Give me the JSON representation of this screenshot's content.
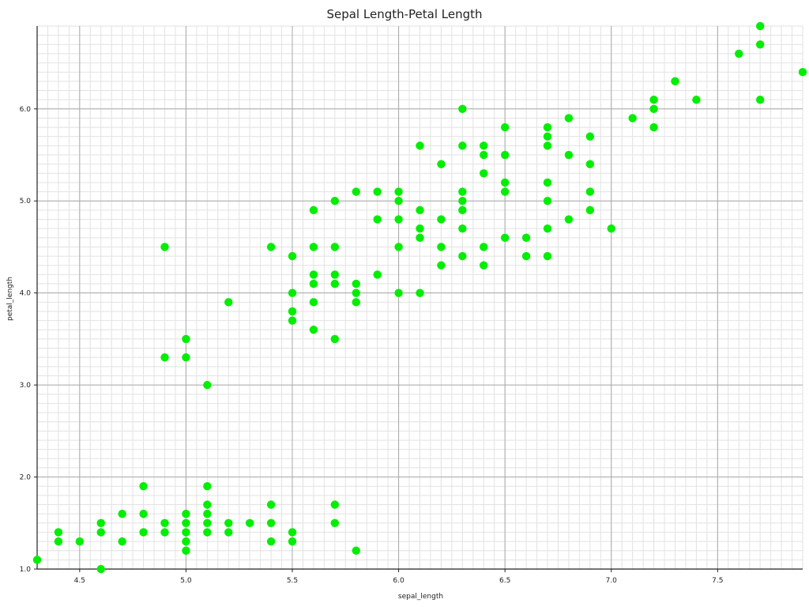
{
  "chart_data": {
    "type": "scatter",
    "title": "Sepal Length-Petal Length",
    "xlabel": "sepal_length",
    "ylabel": "petal_length",
    "xlim": [
      4.3,
      7.9
    ],
    "ylim": [
      1.0,
      6.9
    ],
    "x_ticks": [
      "4.5",
      "5.0",
      "5.5",
      "6.0",
      "6.5",
      "7.0",
      "7.5"
    ],
    "y_ticks": [
      "1.0",
      "2.0",
      "3.0",
      "4.0",
      "5.0",
      "6.0"
    ],
    "grid": true,
    "marker_color": "#00ee00",
    "points": [
      [
        4.3,
        1.1
      ],
      [
        4.4,
        1.3
      ],
      [
        4.4,
        1.4
      ],
      [
        4.5,
        1.3
      ],
      [
        4.6,
        1.0
      ],
      [
        4.6,
        1.4
      ],
      [
        4.6,
        1.5
      ],
      [
        4.7,
        1.3
      ],
      [
        4.7,
        1.6
      ],
      [
        4.8,
        1.4
      ],
      [
        4.8,
        1.6
      ],
      [
        4.8,
        1.9
      ],
      [
        4.9,
        1.4
      ],
      [
        4.9,
        1.5
      ],
      [
        4.9,
        3.3
      ],
      [
        4.9,
        4.5
      ],
      [
        5.0,
        1.2
      ],
      [
        5.0,
        1.3
      ],
      [
        5.0,
        1.4
      ],
      [
        5.0,
        1.5
      ],
      [
        5.0,
        1.6
      ],
      [
        5.0,
        3.3
      ],
      [
        5.0,
        3.5
      ],
      [
        5.1,
        1.4
      ],
      [
        5.1,
        1.5
      ],
      [
        5.1,
        1.6
      ],
      [
        5.1,
        1.7
      ],
      [
        5.1,
        1.9
      ],
      [
        5.1,
        3.0
      ],
      [
        5.2,
        1.4
      ],
      [
        5.2,
        1.5
      ],
      [
        5.2,
        3.9
      ],
      [
        5.3,
        1.5
      ],
      [
        5.4,
        1.3
      ],
      [
        5.4,
        1.5
      ],
      [
        5.4,
        1.7
      ],
      [
        5.4,
        4.5
      ],
      [
        5.5,
        1.3
      ],
      [
        5.5,
        1.4
      ],
      [
        5.5,
        3.7
      ],
      [
        5.5,
        3.8
      ],
      [
        5.5,
        4.0
      ],
      [
        5.5,
        4.4
      ],
      [
        5.6,
        3.6
      ],
      [
        5.6,
        3.9
      ],
      [
        5.6,
        4.1
      ],
      [
        5.6,
        4.2
      ],
      [
        5.6,
        4.5
      ],
      [
        5.6,
        4.9
      ],
      [
        5.7,
        1.5
      ],
      [
        5.7,
        1.7
      ],
      [
        5.7,
        3.5
      ],
      [
        5.7,
        4.1
      ],
      [
        5.7,
        4.2
      ],
      [
        5.7,
        4.5
      ],
      [
        5.7,
        5.0
      ],
      [
        5.8,
        1.2
      ],
      [
        5.8,
        3.9
      ],
      [
        5.8,
        4.0
      ],
      [
        5.8,
        4.1
      ],
      [
        5.8,
        5.1
      ],
      [
        5.9,
        4.2
      ],
      [
        5.9,
        4.8
      ],
      [
        5.9,
        5.1
      ],
      [
        6.0,
        4.0
      ],
      [
        6.0,
        4.5
      ],
      [
        6.0,
        4.8
      ],
      [
        6.0,
        5.0
      ],
      [
        6.0,
        5.1
      ],
      [
        6.1,
        4.0
      ],
      [
        6.1,
        4.6
      ],
      [
        6.1,
        4.7
      ],
      [
        6.1,
        4.9
      ],
      [
        6.1,
        5.6
      ],
      [
        6.2,
        4.3
      ],
      [
        6.2,
        4.5
      ],
      [
        6.2,
        4.8
      ],
      [
        6.2,
        5.4
      ],
      [
        6.3,
        4.4
      ],
      [
        6.3,
        4.7
      ],
      [
        6.3,
        4.9
      ],
      [
        6.3,
        5.0
      ],
      [
        6.3,
        5.1
      ],
      [
        6.3,
        5.6
      ],
      [
        6.3,
        6.0
      ],
      [
        6.4,
        4.3
      ],
      [
        6.4,
        4.5
      ],
      [
        6.4,
        5.3
      ],
      [
        6.4,
        5.5
      ],
      [
        6.4,
        5.6
      ],
      [
        6.5,
        4.6
      ],
      [
        6.5,
        5.1
      ],
      [
        6.5,
        5.2
      ],
      [
        6.5,
        5.5
      ],
      [
        6.5,
        5.8
      ],
      [
        6.6,
        4.4
      ],
      [
        6.6,
        4.6
      ],
      [
        6.7,
        4.4
      ],
      [
        6.7,
        4.7
      ],
      [
        6.7,
        5.0
      ],
      [
        6.7,
        5.2
      ],
      [
        6.7,
        5.6
      ],
      [
        6.7,
        5.7
      ],
      [
        6.7,
        5.8
      ],
      [
        6.8,
        4.8
      ],
      [
        6.8,
        5.5
      ],
      [
        6.8,
        5.9
      ],
      [
        6.9,
        4.9
      ],
      [
        6.9,
        5.1
      ],
      [
        6.9,
        5.4
      ],
      [
        6.9,
        5.7
      ],
      [
        7.0,
        4.7
      ],
      [
        7.1,
        5.9
      ],
      [
        7.2,
        5.8
      ],
      [
        7.2,
        6.0
      ],
      [
        7.2,
        6.1
      ],
      [
        7.3,
        6.3
      ],
      [
        7.4,
        6.1
      ],
      [
        7.6,
        6.6
      ],
      [
        7.7,
        6.1
      ],
      [
        7.7,
        6.7
      ],
      [
        7.7,
        6.9
      ],
      [
        7.9,
        6.4
      ]
    ]
  }
}
